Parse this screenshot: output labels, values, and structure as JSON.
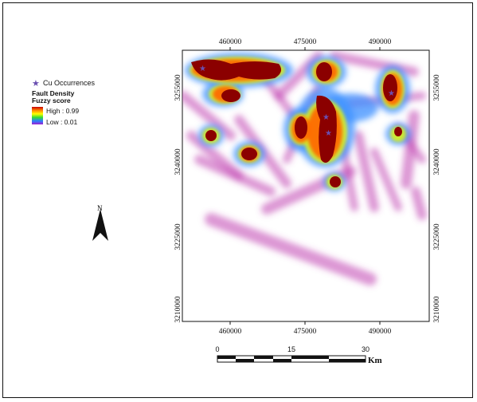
{
  "legend": {
    "occurrence_label": "Cu Occurrences",
    "title_line1": "Fault Density",
    "title_line2": "Fuzzy score",
    "high": "High : 0.99",
    "low": "Low : 0.01",
    "colors": {
      "star": "#6a4fb0",
      "high": "#8b0000",
      "mid": "#ffff00",
      "low": "#a020d0"
    }
  },
  "north_label": "N",
  "axes": {
    "top": [
      "460000",
      "475000",
      "490000"
    ],
    "bottom": [
      "460000",
      "475000",
      "490000"
    ],
    "left": [
      "3255000",
      "3240000",
      "3225000",
      "3210000"
    ],
    "right": [
      "3255000",
      "3240000",
      "3225000",
      "3210000"
    ]
  },
  "scale": {
    "labels": [
      "0",
      "15",
      "30"
    ],
    "unit": "Km"
  }
}
